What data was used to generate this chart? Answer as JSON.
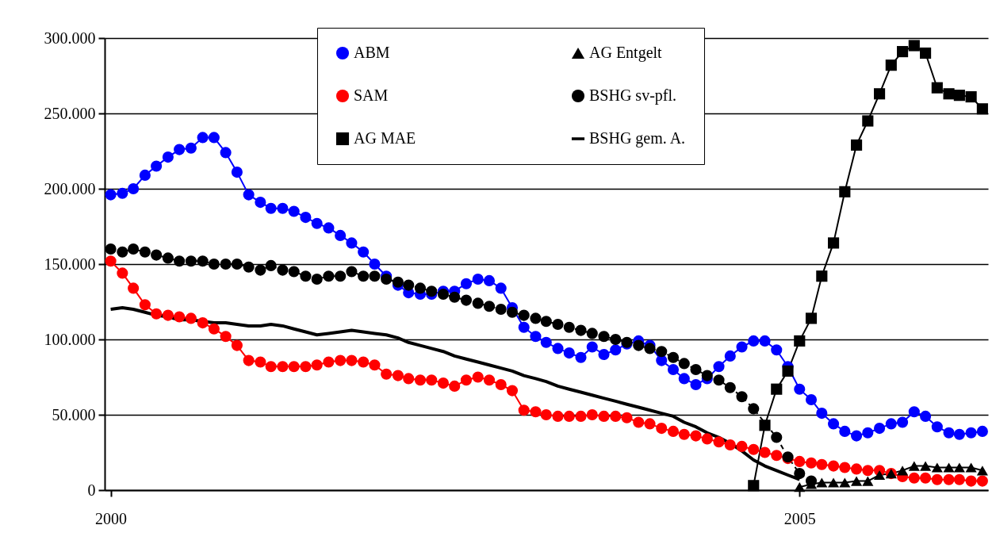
{
  "chart_data": {
    "type": "line",
    "x": [
      "2000-01",
      "2000-02",
      "2000-03",
      "2000-04",
      "2000-05",
      "2000-06",
      "2000-07",
      "2000-08",
      "2000-09",
      "2000-10",
      "2000-11",
      "2000-12",
      "2001-01",
      "2001-02",
      "2001-03",
      "2001-04",
      "2001-05",
      "2001-06",
      "2001-07",
      "2001-08",
      "2001-09",
      "2001-10",
      "2001-11",
      "2001-12",
      "2002-01",
      "2002-02",
      "2002-03",
      "2002-04",
      "2002-05",
      "2002-06",
      "2002-07",
      "2002-08",
      "2002-09",
      "2002-10",
      "2002-11",
      "2002-12",
      "2003-01",
      "2003-02",
      "2003-03",
      "2003-04",
      "2003-05",
      "2003-06",
      "2003-07",
      "2003-08",
      "2003-09",
      "2003-10",
      "2003-11",
      "2003-12",
      "2004-01",
      "2004-02",
      "2004-03",
      "2004-04",
      "2004-05",
      "2004-06",
      "2004-07",
      "2004-08",
      "2004-09",
      "2004-10",
      "2004-11",
      "2004-12",
      "2005-01",
      "2005-02",
      "2005-03",
      "2005-04",
      "2005-05",
      "2005-06",
      "2005-07",
      "2005-08",
      "2005-09",
      "2005-10",
      "2005-11",
      "2005-12",
      "2006-01",
      "2006-02",
      "2006-03",
      "2006-04",
      "2006-05"
    ],
    "series": [
      {
        "name": "ABM",
        "color": "#0000ff",
        "marker": "circle",
        "line_style": "solid",
        "values": [
          196000,
          197000,
          200000,
          209000,
          215000,
          221000,
          226000,
          227000,
          234000,
          234000,
          224000,
          211000,
          196000,
          191000,
          187000,
          187000,
          185000,
          181000,
          177000,
          174000,
          169000,
          164000,
          158000,
          150000,
          142000,
          136000,
          131000,
          130000,
          130000,
          132000,
          132000,
          137000,
          140000,
          139000,
          134000,
          121000,
          108000,
          102000,
          98000,
          94000,
          91000,
          88000,
          95000,
          90000,
          93000,
          97000,
          99000,
          96000,
          86000,
          80000,
          74000,
          70000,
          74000,
          82000,
          89000,
          95000,
          99000,
          99000,
          93000,
          82000,
          67000,
          60000,
          51000,
          44000,
          39000,
          36000,
          38000,
          41000,
          44000,
          45000,
          52000,
          49000,
          42000,
          38000,
          37000,
          38000,
          39000
        ]
      },
      {
        "name": "SAM",
        "color": "#ff0000",
        "marker": "circle",
        "line_style": "solid",
        "values": [
          152000,
          144000,
          134000,
          123000,
          117000,
          116000,
          115000,
          114000,
          111000,
          107000,
          102000,
          96000,
          86000,
          85000,
          82000,
          82000,
          82000,
          82000,
          83000,
          85000,
          86000,
          86000,
          85000,
          83000,
          77000,
          76000,
          74000,
          73000,
          73000,
          71000,
          69000,
          73000,
          75000,
          73000,
          70000,
          66000,
          53000,
          52000,
          50000,
          49000,
          49000,
          49000,
          50000,
          49000,
          49000,
          48000,
          45000,
          44000,
          41000,
          39000,
          37000,
          36000,
          34000,
          32000,
          30000,
          29000,
          27000,
          25000,
          23000,
          21000,
          19000,
          18000,
          17000,
          16000,
          15000,
          14000,
          13000,
          13000,
          11000,
          9000,
          8000,
          8000,
          7000,
          7000,
          7000,
          6000,
          6000
        ]
      },
      {
        "name": "AG MAE",
        "color": "#000000",
        "marker": "square",
        "line_style": "solid",
        "values": [
          null,
          null,
          null,
          null,
          null,
          null,
          null,
          null,
          null,
          null,
          null,
          null,
          null,
          null,
          null,
          null,
          null,
          null,
          null,
          null,
          null,
          null,
          null,
          null,
          null,
          null,
          null,
          null,
          null,
          null,
          null,
          null,
          null,
          null,
          null,
          null,
          null,
          null,
          null,
          null,
          null,
          null,
          null,
          null,
          null,
          null,
          null,
          null,
          null,
          null,
          null,
          null,
          null,
          null,
          null,
          null,
          3000,
          43000,
          67000,
          79000,
          99000,
          114000,
          142000,
          164000,
          198000,
          229000,
          245000,
          263000,
          282000,
          291000,
          295000,
          290000,
          267000,
          263000,
          262000,
          261000,
          253000
        ]
      },
      {
        "name": "AG Entgelt",
        "color": "#000000",
        "marker": "triangle",
        "line_style": "solid",
        "values": [
          null,
          null,
          null,
          null,
          null,
          null,
          null,
          null,
          null,
          null,
          null,
          null,
          null,
          null,
          null,
          null,
          null,
          null,
          null,
          null,
          null,
          null,
          null,
          null,
          null,
          null,
          null,
          null,
          null,
          null,
          null,
          null,
          null,
          null,
          null,
          null,
          null,
          null,
          null,
          null,
          null,
          null,
          null,
          null,
          null,
          null,
          null,
          null,
          null,
          null,
          null,
          null,
          null,
          null,
          null,
          null,
          null,
          null,
          null,
          null,
          2000,
          4000,
          5000,
          5000,
          5000,
          6000,
          6000,
          10000,
          11000,
          13000,
          16000,
          16000,
          15000,
          15000,
          15000,
          15000,
          13000
        ]
      },
      {
        "name": "BSHG sv-pfl.",
        "color": "#000000",
        "marker": "circle",
        "line_style": "dashed",
        "values": [
          160000,
          158000,
          160000,
          158000,
          156000,
          154000,
          152000,
          152000,
          152000,
          150000,
          150000,
          150000,
          148000,
          146000,
          149000,
          146000,
          145000,
          142000,
          140000,
          142000,
          142000,
          145000,
          142000,
          142000,
          140000,
          138000,
          136000,
          134000,
          132000,
          130000,
          128000,
          126000,
          124000,
          122000,
          120000,
          118000,
          116000,
          114000,
          112000,
          110000,
          108000,
          106000,
          104000,
          102000,
          100000,
          98000,
          96000,
          94000,
          92000,
          88000,
          84000,
          80000,
          76000,
          73000,
          68000,
          62000,
          54000,
          null,
          35000,
          22000,
          11000,
          6000,
          null,
          null,
          null,
          null,
          null,
          null,
          null,
          null,
          null,
          null,
          null,
          null,
          null,
          null,
          null
        ]
      },
      {
        "name": "BSHG gem. A.",
        "color": "#000000",
        "marker": "none",
        "line_style": "solid",
        "values": [
          120000,
          121000,
          120000,
          118000,
          116000,
          115000,
          113000,
          113000,
          112000,
          111000,
          111000,
          110000,
          109000,
          109000,
          110000,
          109000,
          107000,
          105000,
          103000,
          104000,
          105000,
          106000,
          105000,
          104000,
          103000,
          101000,
          98000,
          96000,
          94000,
          92000,
          89000,
          87000,
          85000,
          83000,
          81000,
          79000,
          76000,
          74000,
          72000,
          69000,
          67000,
          65000,
          63000,
          61000,
          59000,
          57000,
          55000,
          53000,
          51000,
          49000,
          45000,
          42000,
          38000,
          35000,
          31000,
          26000,
          20000,
          16000,
          13000,
          10000,
          7000,
          null,
          null,
          null,
          null,
          null,
          null,
          null,
          null,
          null,
          null,
          null,
          null,
          null,
          null,
          null,
          null
        ]
      }
    ],
    "xlim": [
      "1999-12-16",
      "2006-05-16"
    ],
    "xticks": [
      "2000",
      "2005"
    ],
    "ylim": [
      0,
      300000
    ],
    "yticks": [
      0,
      {
        "value": 50000,
        "label": "50.000"
      },
      {
        "value": 100000,
        "label": "100.000"
      },
      {
        "value": 150000,
        "label": "150.000"
      },
      {
        "value": 200000,
        "label": "200.000"
      },
      {
        "value": 250000,
        "label": "250.000"
      },
      {
        "value": 300000,
        "label": "300.000"
      }
    ],
    "grid": "y",
    "legend": "top"
  }
}
